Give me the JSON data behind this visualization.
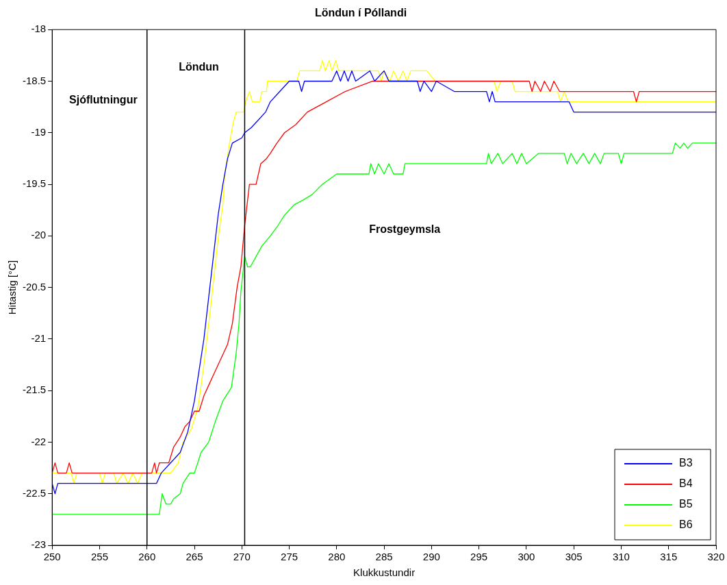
{
  "chart_data": {
    "type": "line",
    "title": "Löndun í Póllandi",
    "xlabel": "Klukkustundir",
    "ylabel": "Hitastig [°C]",
    "xlim": [
      250,
      320
    ],
    "xticks": [
      250,
      255,
      260,
      265,
      270,
      275,
      280,
      285,
      290,
      295,
      300,
      305,
      310,
      315,
      320
    ],
    "ylim": [
      -23,
      -18
    ],
    "yticks": [
      -23,
      -22.5,
      -22,
      -21.5,
      -21,
      -20.5,
      -20,
      -19.5,
      -19,
      -18.5,
      -18
    ],
    "grid": false,
    "legend": "bottom right",
    "marker": "none",
    "line_style": "solid",
    "ref_lines": [
      {
        "axis": "x",
        "value": 260,
        "color": "#000000"
      },
      {
        "axis": "x",
        "value": 270.3,
        "color": "#000000"
      }
    ],
    "annotations": [
      "Sjóflutningur",
      "Löndun",
      "Frostgeymsla"
    ],
    "series": [
      {
        "name": "B3",
        "color": "#0000ff",
        "x": [
          250,
          250.3,
          250.6,
          261,
          261.5,
          262.5,
          263.5,
          264.3,
          265,
          265.5,
          266,
          266.5,
          267,
          267.5,
          268,
          268.5,
          269,
          270,
          270.3,
          271,
          271.5,
          272.5,
          273,
          274,
          275,
          276,
          276.3,
          276.6,
          279.5,
          280,
          280.4,
          280.8,
          281.2,
          281.6,
          282,
          283.5,
          284,
          285,
          285.5,
          288.5,
          288.8,
          289.2,
          290,
          290.5,
          292.4,
          295.8,
          296.1,
          296.4,
          296.7,
          304.5,
          305,
          320
        ],
        "values": [
          -22.4,
          -22.5,
          -22.4,
          -22.4,
          -22.3,
          -22.2,
          -22.1,
          -21.9,
          -21.6,
          -21.3,
          -21.0,
          -20.6,
          -20.2,
          -19.8,
          -19.5,
          -19.25,
          -19.1,
          -19.05,
          -19.0,
          -18.95,
          -18.9,
          -18.8,
          -18.7,
          -18.6,
          -18.5,
          -18.5,
          -18.6,
          -18.5,
          -18.5,
          -18.4,
          -18.5,
          -18.4,
          -18.5,
          -18.4,
          -18.5,
          -18.4,
          -18.5,
          -18.4,
          -18.5,
          -18.5,
          -18.6,
          -18.5,
          -18.6,
          -18.5,
          -18.6,
          -18.6,
          -18.7,
          -18.6,
          -18.7,
          -18.7,
          -18.8,
          -18.8
        ]
      },
      {
        "name": "B4",
        "color": "#ff0000",
        "x": [
          250,
          250.3,
          250.6,
          251.5,
          251.8,
          252.1,
          260.5,
          260.8,
          261,
          261.3,
          262.3,
          262.8,
          263.5,
          264,
          264.5,
          265,
          265.5,
          266,
          266.5,
          267,
          267.5,
          268,
          268.5,
          269,
          269.5,
          269.9,
          270.3,
          270.8,
          271.5,
          272,
          272.6,
          273,
          273.7,
          274.5,
          275.7,
          276.9,
          278.9,
          280.9,
          283.8,
          300.3,
          300.6,
          300.9,
          301.5,
          301.9,
          302.5,
          302.9,
          303.5,
          304,
          311.3,
          311.6,
          311.9,
          320
        ],
        "values": [
          -22.3,
          -22.2,
          -22.3,
          -22.3,
          -22.2,
          -22.3,
          -22.3,
          -22.2,
          -22.3,
          -22.2,
          -22.2,
          -22.05,
          -21.95,
          -21.85,
          -21.8,
          -21.7,
          -21.7,
          -21.55,
          -21.45,
          -21.35,
          -21.25,
          -21.15,
          -21.05,
          -20.85,
          -20.5,
          -20.3,
          -19.9,
          -19.5,
          -19.5,
          -19.3,
          -19.25,
          -19.2,
          -19.1,
          -19.0,
          -18.92,
          -18.8,
          -18.7,
          -18.6,
          -18.5,
          -18.5,
          -18.6,
          -18.5,
          -18.6,
          -18.5,
          -18.6,
          -18.5,
          -18.6,
          -18.6,
          -18.6,
          -18.7,
          -18.6,
          -18.6
        ]
      },
      {
        "name": "B5",
        "color": "#00ff00",
        "x": [
          250,
          261.3,
          261.6,
          262,
          262.5,
          262.8,
          263.5,
          263.8,
          264.5,
          265,
          265.7,
          266.5,
          267.2,
          268,
          268.9,
          269.4,
          269.7,
          269.9,
          270.3,
          270.6,
          270.9,
          271.5,
          272.1,
          273,
          273.8,
          274.5,
          275.5,
          276.5,
          277.4,
          278.5,
          280,
          283.4,
          283.6,
          284,
          284.4,
          285,
          285.5,
          286,
          287,
          287.2,
          295.8,
          296,
          296.3,
          297,
          297.5,
          298.5,
          299,
          299.5,
          300,
          301.3,
          304,
          304.3,
          304.7,
          305.3,
          306,
          306.6,
          307.2,
          307.8,
          308.2,
          309.7,
          310,
          310.3,
          315.4,
          315.7,
          316.2,
          316.6,
          317,
          317.5,
          320
        ],
        "values": [
          -22.7,
          -22.7,
          -22.5,
          -22.6,
          -22.6,
          -22.55,
          -22.5,
          -22.4,
          -22.3,
          -22.3,
          -22.1,
          -22.0,
          -21.8,
          -21.6,
          -21.47,
          -21.14,
          -20.85,
          -20.54,
          -20.2,
          -20.3,
          -20.3,
          -20.2,
          -20.1,
          -20.0,
          -19.9,
          -19.8,
          -19.7,
          -19.65,
          -19.6,
          -19.5,
          -19.4,
          -19.4,
          -19.3,
          -19.4,
          -19.3,
          -19.4,
          -19.3,
          -19.4,
          -19.4,
          -19.3,
          -19.3,
          -19.2,
          -19.3,
          -19.2,
          -19.3,
          -19.2,
          -19.3,
          -19.2,
          -19.3,
          -19.2,
          -19.2,
          -19.3,
          -19.2,
          -19.3,
          -19.2,
          -19.3,
          -19.2,
          -19.3,
          -19.2,
          -19.2,
          -19.3,
          -19.2,
          -19.2,
          -19.1,
          -19.15,
          -19.1,
          -19.15,
          -19.1,
          -19.1
        ]
      },
      {
        "name": "B6",
        "color": "#ffff00",
        "x": [
          250,
          252,
          252.3,
          252.6,
          255,
          255.3,
          255.6,
          256.5,
          256.8,
          257.5,
          258,
          258.5,
          259,
          259.5,
          262.5,
          263.3,
          263.8,
          264.7,
          265.4,
          266,
          266.7,
          267.5,
          268,
          268.2,
          268.7,
          269.1,
          269.4,
          270.2,
          270.4,
          270.8,
          271.1,
          271.9,
          272.1,
          272.6,
          272.7,
          275.8,
          276.1,
          278.2,
          278.5,
          278.8,
          279.2,
          279.5,
          279.9,
          280.2,
          284.4,
          284.7,
          285,
          285.6,
          286,
          286.5,
          287,
          287.4,
          287.8,
          289.5,
          290.4,
          296.6,
          296.9,
          297.3,
          298.5,
          298.8,
          303.3,
          303.6,
          304,
          304.4,
          320
        ],
        "values": [
          -22.3,
          -22.3,
          -22.4,
          -22.3,
          -22.3,
          -22.4,
          -22.3,
          -22.3,
          -22.4,
          -22.3,
          -22.4,
          -22.3,
          -22.4,
          -22.3,
          -22.3,
          -22.2,
          -22.0,
          -21.87,
          -21.65,
          -21.25,
          -20.7,
          -20.03,
          -19.7,
          -19.4,
          -19.1,
          -18.9,
          -18.8,
          -18.8,
          -18.7,
          -18.6,
          -18.7,
          -18.7,
          -18.6,
          -18.6,
          -18.5,
          -18.5,
          -18.4,
          -18.4,
          -18.3,
          -18.4,
          -18.3,
          -18.4,
          -18.3,
          -18.4,
          -18.4,
          -18.5,
          -18.4,
          -18.5,
          -18.4,
          -18.5,
          -18.4,
          -18.5,
          -18.4,
          -18.4,
          -18.5,
          -18.5,
          -18.6,
          -18.5,
          -18.5,
          -18.6,
          -18.6,
          -18.7,
          -18.6,
          -18.7,
          -18.7
        ]
      }
    ]
  }
}
